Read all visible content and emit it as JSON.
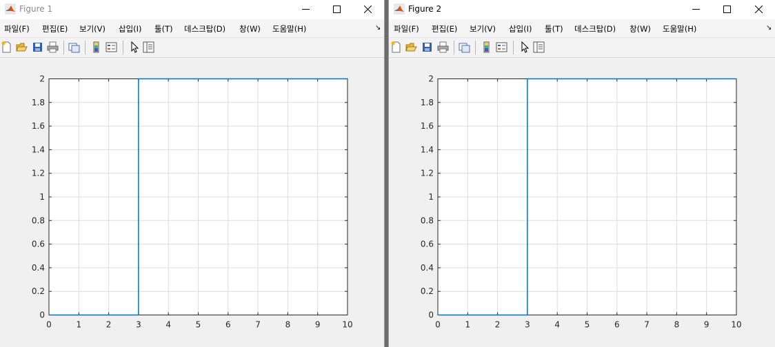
{
  "figures": [
    {
      "title": "Figure 1",
      "menus": [
        "파일(F)",
        "편집(E)",
        "보기(V)",
        "삽입(I)",
        "툴(T)",
        "데스크탑(D)",
        "창(W)",
        "도움말(H)"
      ],
      "chart_data": {
        "type": "line",
        "x": [
          0,
          3,
          3,
          10
        ],
        "series": [
          {
            "values": [
              0,
              0,
              2,
              2
            ],
            "color": "#0072BD"
          }
        ],
        "xlim": [
          0,
          10
        ],
        "ylim": [
          0,
          2
        ],
        "xticks": [
          "0",
          "1",
          "2",
          "3",
          "4",
          "5",
          "6",
          "7",
          "8",
          "9",
          "10"
        ],
        "yticks": [
          "0",
          "0.2",
          "0.4",
          "0.6",
          "0.8",
          "1",
          "1.2",
          "1.4",
          "1.6",
          "1.8",
          "2"
        ],
        "grid": true
      }
    },
    {
      "title": "Figure 2",
      "menus": [
        "파일(F)",
        "편집(E)",
        "보기(V)",
        "삽입(I)",
        "툴(T)",
        "데스크탑(D)",
        "창(W)",
        "도움말(H)"
      ],
      "chart_data": {
        "type": "line",
        "x": [
          0,
          3,
          3,
          10
        ],
        "series": [
          {
            "values": [
              0,
              0,
              2,
              2
            ],
            "color": "#0072BD"
          }
        ],
        "xlim": [
          0,
          10
        ],
        "ylim": [
          0,
          2
        ],
        "xticks": [
          "0",
          "1",
          "2",
          "3",
          "4",
          "5",
          "6",
          "7",
          "8",
          "9",
          "10"
        ],
        "yticks": [
          "0",
          "0.2",
          "0.4",
          "0.6",
          "0.8",
          "1",
          "1.2",
          "1.4",
          "1.6",
          "1.8",
          "2"
        ],
        "grid": true
      }
    }
  ],
  "icons": [
    "new-figure-icon",
    "open-icon",
    "save-icon",
    "print-icon",
    "link-plot-icon",
    "colorbar-icon",
    "legend-icon",
    "edit-plot-icon",
    "property-inspector-icon"
  ]
}
